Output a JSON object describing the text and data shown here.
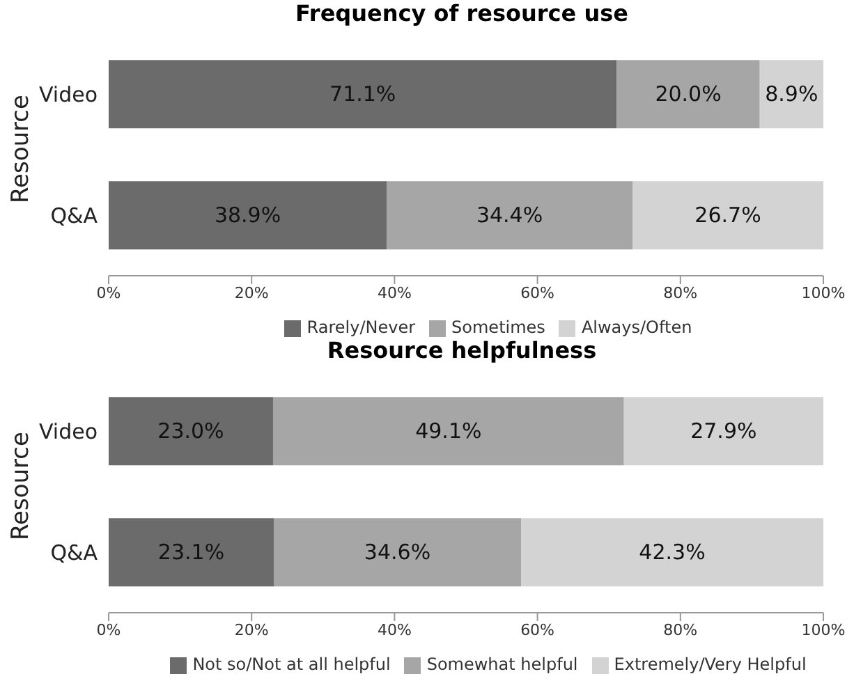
{
  "chart_data": [
    {
      "type": "bar",
      "orientation": "horizontal",
      "stacked": true,
      "title": "Frequency of resource use",
      "ylabel": "Resource",
      "categories": [
        "Video",
        "Q&A"
      ],
      "series": [
        {
          "name": "Rarely/Never",
          "color": "#6b6b6b",
          "values": [
            71.1,
            38.9
          ],
          "value_labels": [
            "71.1%",
            "38.9%"
          ]
        },
        {
          "name": "Sometimes",
          "color": "#a6a6a6",
          "values": [
            20.0,
            34.4
          ],
          "value_labels": [
            "20.0%",
            "34.4%"
          ]
        },
        {
          "name": "Always/Often",
          "color": "#d3d3d3",
          "values": [
            8.9,
            26.7
          ],
          "value_labels": [
            "8.9%",
            "26.7%"
          ]
        }
      ],
      "xlim": [
        0,
        100
      ],
      "xticks": [
        {
          "value": 0,
          "label": "0%"
        },
        {
          "value": 20,
          "label": "20%"
        },
        {
          "value": 40,
          "label": "40%"
        },
        {
          "value": 60,
          "label": "60%"
        },
        {
          "value": 80,
          "label": "80%"
        },
        {
          "value": 100,
          "label": "100%"
        }
      ],
      "legend": "bottom",
      "grid": false
    },
    {
      "type": "bar",
      "orientation": "horizontal",
      "stacked": true,
      "title": "Resource helpfulness",
      "ylabel": "Resource",
      "categories": [
        "Video",
        "Q&A"
      ],
      "series": [
        {
          "name": "Not so/Not at all helpful",
          "color": "#6b6b6b",
          "values": [
            23.0,
            23.1
          ],
          "value_labels": [
            "23.0%",
            "23.1%"
          ]
        },
        {
          "name": "Somewhat helpful",
          "color": "#a6a6a6",
          "values": [
            49.1,
            34.6
          ],
          "value_labels": [
            "49.1%",
            "34.6%"
          ]
        },
        {
          "name": "Extremely/Very Helpful",
          "color": "#d3d3d3",
          "values": [
            27.9,
            42.3
          ],
          "value_labels": [
            "27.9%",
            "42.3%"
          ]
        }
      ],
      "xlim": [
        0,
        100
      ],
      "xticks": [
        {
          "value": 0,
          "label": "0%"
        },
        {
          "value": 20,
          "label": "20%"
        },
        {
          "value": 40,
          "label": "40%"
        },
        {
          "value": 60,
          "label": "60%"
        },
        {
          "value": 80,
          "label": "80%"
        },
        {
          "value": 100,
          "label": "100%"
        }
      ],
      "legend": "bottom",
      "grid": false
    }
  ]
}
